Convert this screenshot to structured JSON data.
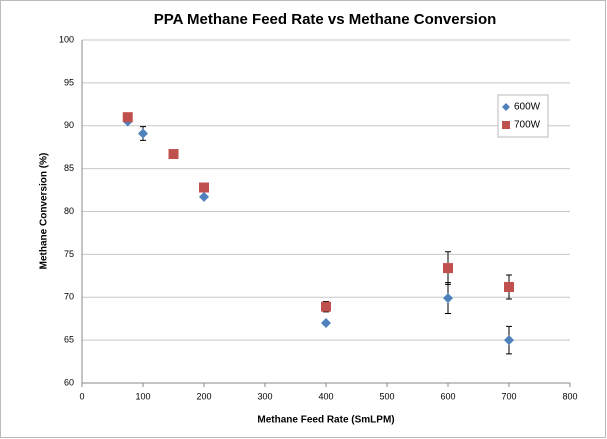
{
  "chart_data": {
    "type": "scatter",
    "title": "PPA Methane Feed Rate vs Methane Conversion",
    "x_label": "Methane Feed Rate (SmLPM)",
    "y_label": "Methane Conversion (%)",
    "xlim": [
      0,
      800
    ],
    "xticks": [
      0,
      100,
      200,
      300,
      400,
      500,
      600,
      700,
      800
    ],
    "ylim": [
      60,
      100
    ],
    "yticks": [
      60,
      65,
      70,
      75,
      80,
      85,
      90,
      95,
      100
    ],
    "grid": true,
    "legend": "upper right",
    "series": [
      {
        "name": "600W",
        "color": "#4f81bd",
        "marker": "diamond",
        "x": [
          75,
          100,
          200,
          400,
          600,
          700
        ],
        "values": [
          90.5,
          89.1,
          81.7,
          67.0,
          69.9,
          65.0
        ],
        "errors": [
          null,
          0.8,
          null,
          null,
          1.8,
          1.6
        ]
      },
      {
        "name": "700W",
        "color": "#c0504d",
        "marker": "square",
        "x": [
          75,
          150,
          200,
          400,
          600,
          700
        ],
        "values": [
          91.0,
          86.7,
          82.8,
          68.9,
          73.4,
          71.2
        ],
        "errors": [
          null,
          null,
          null,
          0.6,
          1.9,
          1.4
        ]
      }
    ]
  }
}
